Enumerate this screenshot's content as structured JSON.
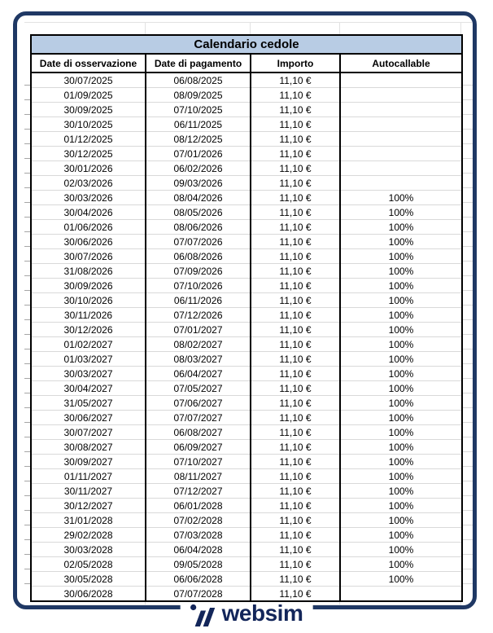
{
  "colors": {
    "frame_navy": "#1f3864",
    "title_bg": "#b8cce4",
    "logo_navy": "#13265a",
    "gridline_gray": "#d9d9d9"
  },
  "table": {
    "title": "Calendario cedole",
    "columns": [
      "Date di osservazione",
      "Date di pagamento",
      "Importo",
      "Autocallable"
    ],
    "rows": [
      [
        "30/07/2025",
        "06/08/2025",
        "11,10 €",
        ""
      ],
      [
        "01/09/2025",
        "08/09/2025",
        "11,10 €",
        ""
      ],
      [
        "30/09/2025",
        "07/10/2025",
        "11,10 €",
        ""
      ],
      [
        "30/10/2025",
        "06/11/2025",
        "11,10 €",
        ""
      ],
      [
        "01/12/2025",
        "08/12/2025",
        "11,10 €",
        ""
      ],
      [
        "30/12/2025",
        "07/01/2026",
        "11,10 €",
        ""
      ],
      [
        "30/01/2026",
        "06/02/2026",
        "11,10 €",
        ""
      ],
      [
        "02/03/2026",
        "09/03/2026",
        "11,10 €",
        ""
      ],
      [
        "30/03/2026",
        "08/04/2026",
        "11,10 €",
        "100%"
      ],
      [
        "30/04/2026",
        "08/05/2026",
        "11,10 €",
        "100%"
      ],
      [
        "01/06/2026",
        "08/06/2026",
        "11,10 €",
        "100%"
      ],
      [
        "30/06/2026",
        "07/07/2026",
        "11,10 €",
        "100%"
      ],
      [
        "30/07/2026",
        "06/08/2026",
        "11,10 €",
        "100%"
      ],
      [
        "31/08/2026",
        "07/09/2026",
        "11,10 €",
        "100%"
      ],
      [
        "30/09/2026",
        "07/10/2026",
        "11,10 €",
        "100%"
      ],
      [
        "30/10/2026",
        "06/11/2026",
        "11,10 €",
        "100%"
      ],
      [
        "30/11/2026",
        "07/12/2026",
        "11,10 €",
        "100%"
      ],
      [
        "30/12/2026",
        "07/01/2027",
        "11,10 €",
        "100%"
      ],
      [
        "01/02/2027",
        "08/02/2027",
        "11,10 €",
        "100%"
      ],
      [
        "01/03/2027",
        "08/03/2027",
        "11,10 €",
        "100%"
      ],
      [
        "30/03/2027",
        "06/04/2027",
        "11,10 €",
        "100%"
      ],
      [
        "30/04/2027",
        "07/05/2027",
        "11,10 €",
        "100%"
      ],
      [
        "31/05/2027",
        "07/06/2027",
        "11,10 €",
        "100%"
      ],
      [
        "30/06/2027",
        "07/07/2027",
        "11,10 €",
        "100%"
      ],
      [
        "30/07/2027",
        "06/08/2027",
        "11,10 €",
        "100%"
      ],
      [
        "30/08/2027",
        "06/09/2027",
        "11,10 €",
        "100%"
      ],
      [
        "30/09/2027",
        "07/10/2027",
        "11,10 €",
        "100%"
      ],
      [
        "01/11/2027",
        "08/11/2027",
        "11,10 €",
        "100%"
      ],
      [
        "30/11/2027",
        "07/12/2027",
        "11,10 €",
        "100%"
      ],
      [
        "30/12/2027",
        "06/01/2028",
        "11,10 €",
        "100%"
      ],
      [
        "31/01/2028",
        "07/02/2028",
        "11,10 €",
        "100%"
      ],
      [
        "29/02/2028",
        "07/03/2028",
        "11,10 €",
        "100%"
      ],
      [
        "30/03/2028",
        "06/04/2028",
        "11,10 €",
        "100%"
      ],
      [
        "02/05/2028",
        "09/05/2028",
        "11,10 €",
        "100%"
      ],
      [
        "30/05/2028",
        "06/06/2028",
        "11,10 €",
        "100%"
      ],
      [
        "30/06/2028",
        "07/07/2028",
        "11,10 €",
        ""
      ]
    ]
  },
  "footer": {
    "logo_text": "websim"
  }
}
